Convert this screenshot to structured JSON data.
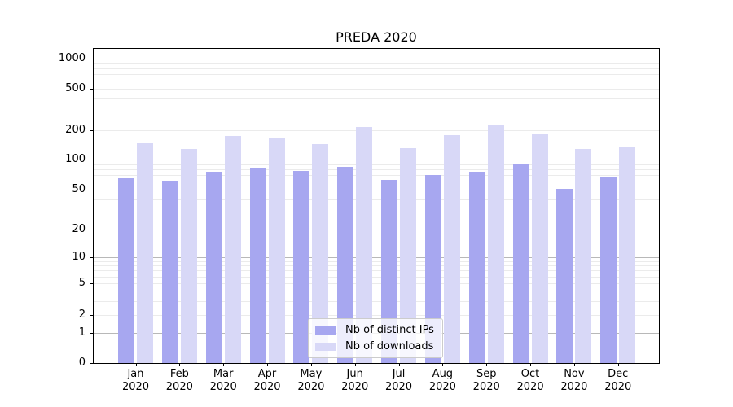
{
  "chart_data": {
    "type": "bar",
    "title": "PREDA 2020",
    "categories": [
      "Jan 2020",
      "Feb 2020",
      "Mar 2020",
      "Apr 2020",
      "May 2020",
      "Jun 2020",
      "Jul 2020",
      "Aug 2020",
      "Sep 2020",
      "Oct 2020",
      "Nov 2020",
      "Dec 2020"
    ],
    "series": [
      {
        "name": "Nb of distinct IPs",
        "color": "#a7a7f0",
        "values": [
          65,
          62,
          75,
          83,
          77,
          84,
          63,
          70,
          75,
          89,
          51,
          66
        ]
      },
      {
        "name": "Nb of downloads",
        "color": "#d8d8f7",
        "values": [
          148,
          129,
          174,
          168,
          145,
          215,
          131,
          179,
          225,
          181,
          128,
          134
        ]
      }
    ],
    "xlabel": "",
    "ylabel": "",
    "yscale": "symlog",
    "ylim": [
      0,
      1275
    ],
    "y_ticks": [
      0,
      1,
      2,
      5,
      10,
      20,
      50,
      100,
      200,
      500,
      1000
    ],
    "y_major_gridlines": [
      1,
      10,
      100,
      1000
    ],
    "y_minor_gridlines": [
      2,
      3,
      4,
      5,
      6,
      7,
      8,
      9,
      20,
      30,
      40,
      50,
      60,
      70,
      80,
      90,
      200,
      300,
      400,
      500,
      600,
      700,
      800,
      900
    ],
    "grid": true,
    "legend_position": "lower center"
  }
}
